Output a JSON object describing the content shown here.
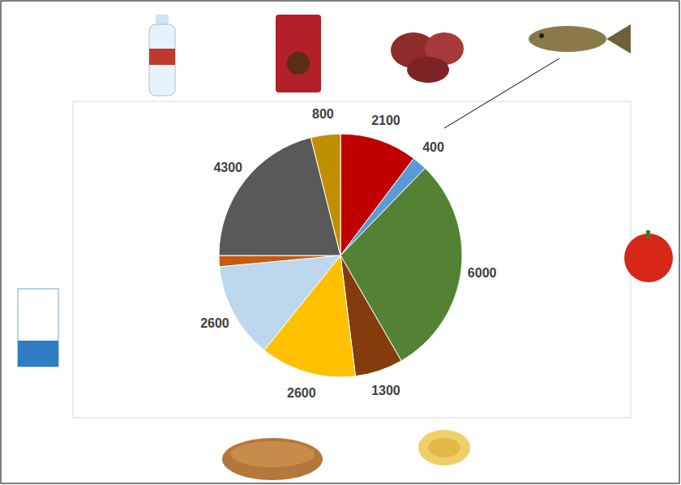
{
  "chart_data": {
    "type": "pie",
    "values": [
      2100,
      400,
      6000,
      1300,
      2600,
      2600,
      300,
      4300,
      800
    ],
    "value_labels": [
      "2100",
      "400",
      "6000",
      "1300",
      "2600",
      "2600",
      null,
      "4300",
      "800"
    ],
    "colors": [
      "#c00000",
      "#5b9bd5",
      "#548235",
      "#843c0c",
      "#ffc000",
      "#bdd7ee",
      "#c55a11",
      "#595959",
      "#bf8f00"
    ],
    "data_labels": true
  }
}
